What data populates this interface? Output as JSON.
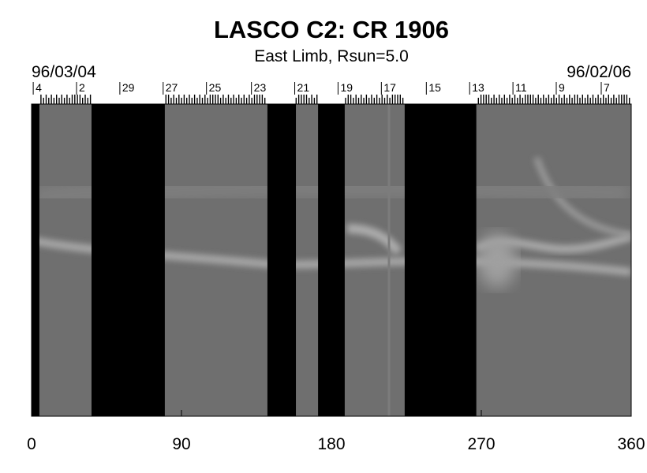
{
  "chart_data": {
    "type": "synoptic",
    "title": "LASCO C2: CR 1906",
    "subtitle": "East Limb, Rsun=5.0",
    "start_date": "96/03/04",
    "end_date": "96/02/06",
    "xlim": [
      0,
      360
    ],
    "xticks": [
      0,
      90,
      180,
      270,
      360
    ],
    "day_ticks": [
      {
        "value": 1,
        "label": "4"
      },
      {
        "value": 27,
        "label": "2"
      },
      {
        "value": 53,
        "label": "29"
      },
      {
        "value": 79,
        "label": "27"
      },
      {
        "value": 105,
        "label": "25"
      },
      {
        "value": 132,
        "label": "23"
      },
      {
        "value": 158,
        "label": "21"
      },
      {
        "value": 184,
        "label": "19"
      },
      {
        "value": 210,
        "label": "17"
      },
      {
        "value": 237,
        "label": "15"
      },
      {
        "value": 263,
        "label": "13"
      },
      {
        "value": 289,
        "label": "11"
      },
      {
        "value": 315,
        "label": "9"
      },
      {
        "value": 342,
        "label": "7"
      }
    ],
    "data_gaps": [
      [
        0,
        4.7
      ],
      [
        36,
        80
      ],
      [
        141.6,
        158.7
      ],
      [
        172,
        188
      ],
      [
        224,
        267
      ]
    ],
    "image_color": "#6f6f6f",
    "gap_color": "#000000"
  }
}
